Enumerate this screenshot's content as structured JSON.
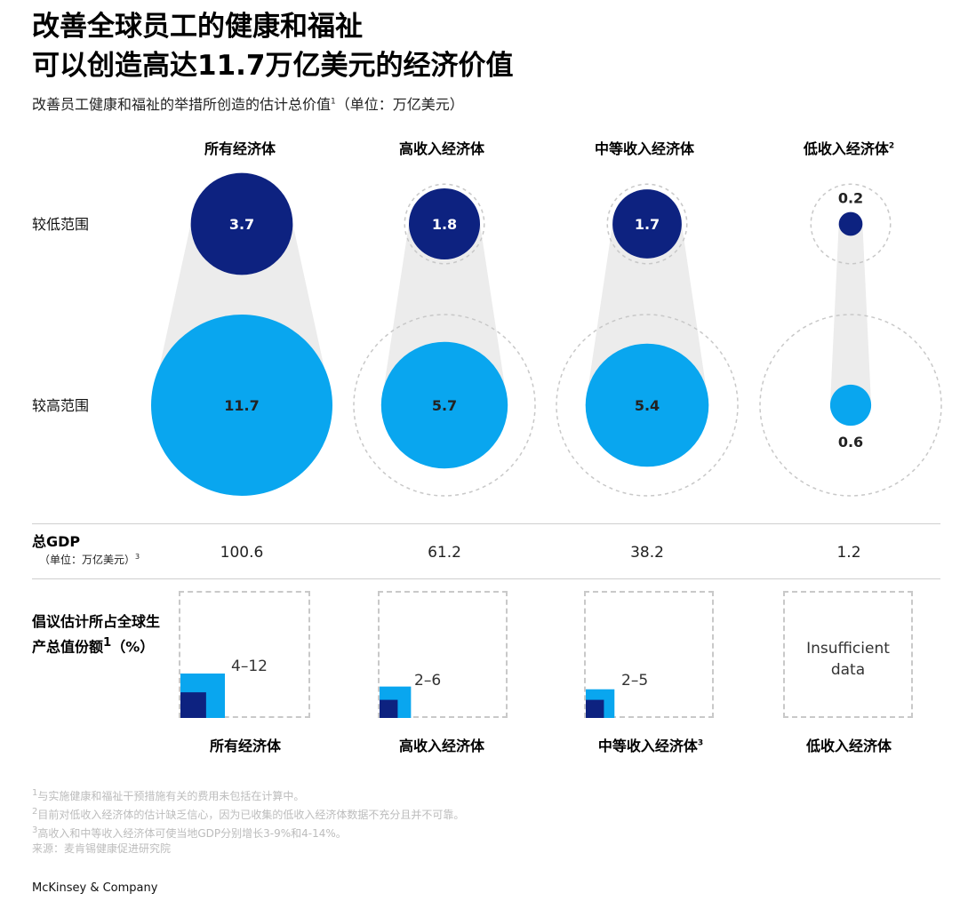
{
  "title_line1": "改善全球员工的健康和福祉",
  "title_line2": "可以创造高达11.7万亿美元的经济价值",
  "subtitle": "改善员工健康和福祉的举措所创造的估计总价值",
  "subtitle_sup": "1",
  "subtitle_unit": "（单位：万亿美元）",
  "row_labels": {
    "low": "较低范围",
    "high": "较高范围"
  },
  "colors": {
    "dark": "#0d2280",
    "light": "#09a6ef",
    "funnel": "#ececec",
    "dash": "#c8c8c8"
  },
  "chart_data": {
    "type": "bubble",
    "title": "改善员工健康和福祉的举措所创造的估计总价值（单位：万亿美元）",
    "categories": [
      "所有经济体",
      "高收入经济体",
      "中等收入经济体",
      "低收入经济体"
    ],
    "category_sups": [
      "",
      "",
      "",
      "2"
    ],
    "series": [
      {
        "name": "较低范围",
        "values": [
          3.7,
          1.8,
          1.7,
          0.2
        ],
        "labels": [
          "3.7",
          "1.8",
          "1.7",
          "0.2"
        ]
      },
      {
        "name": "较高范围",
        "values": [
          11.7,
          5.7,
          5.4,
          0.6
        ],
        "labels": [
          "11.7",
          "5.7",
          "5.4",
          "0.6"
        ]
      }
    ],
    "reference_max": 11.7
  },
  "gdp": {
    "title": "总GDP",
    "unit": "（单位：万亿美元）",
    "unit_sup": "3",
    "values": [
      "100.6",
      "61.2",
      "38.2",
      "1.2"
    ]
  },
  "share": {
    "title": "倡议估计所占全球生产总值份额",
    "title_sup": "1",
    "title_suffix": "（%）",
    "low_pct": [
      4,
      2,
      2,
      null
    ],
    "high_pct": [
      12,
      6,
      5,
      null
    ],
    "labels": [
      "4–12",
      "2–6",
      "2–5",
      ""
    ],
    "insufficient_line1": "Insufficient",
    "insufficient_line2": "data"
  },
  "bottom_heads": [
    "所有经济体",
    "高收入经济体",
    "中等收入经济体",
    "低收入经济体"
  ],
  "bottom_head_sups": [
    "",
    "",
    "3",
    ""
  ],
  "footnotes": [
    {
      "sup": "1",
      "text": "与实施健康和福祉干预措施有关的费用未包括在计算中。"
    },
    {
      "sup": "2",
      "text": "目前对低收入经济体的估计缺乏信心，因为已收集的低收入经济体数据不充分且并不可靠。"
    },
    {
      "sup": "3",
      "text": "高收入和中等收入经济体可使当地GDP分别增长3-9%和4-14%。"
    }
  ],
  "source": "来源：麦肯锡健康促进研究院",
  "brand": "McKinsey & Company"
}
